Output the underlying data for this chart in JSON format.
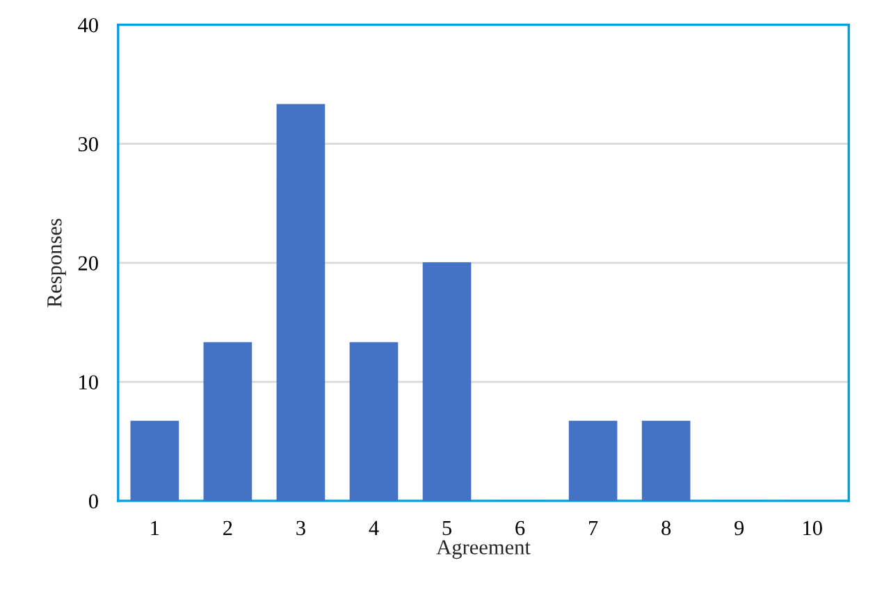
{
  "chart_data": {
    "type": "bar",
    "xlabel": "Agreement",
    "ylabel": "Responses",
    "categories": [
      "1",
      "2",
      "3",
      "4",
      "5",
      "6",
      "7",
      "8",
      "9",
      "10"
    ],
    "values": [
      6.7,
      13.3,
      33.3,
      13.3,
      20,
      0,
      6.7,
      6.7,
      0,
      0
    ],
    "color": "#4472c4",
    "ylim": [
      0,
      40
    ],
    "yticks": [
      0,
      10,
      20,
      30,
      40
    ],
    "grid": "y",
    "legend": false
  }
}
